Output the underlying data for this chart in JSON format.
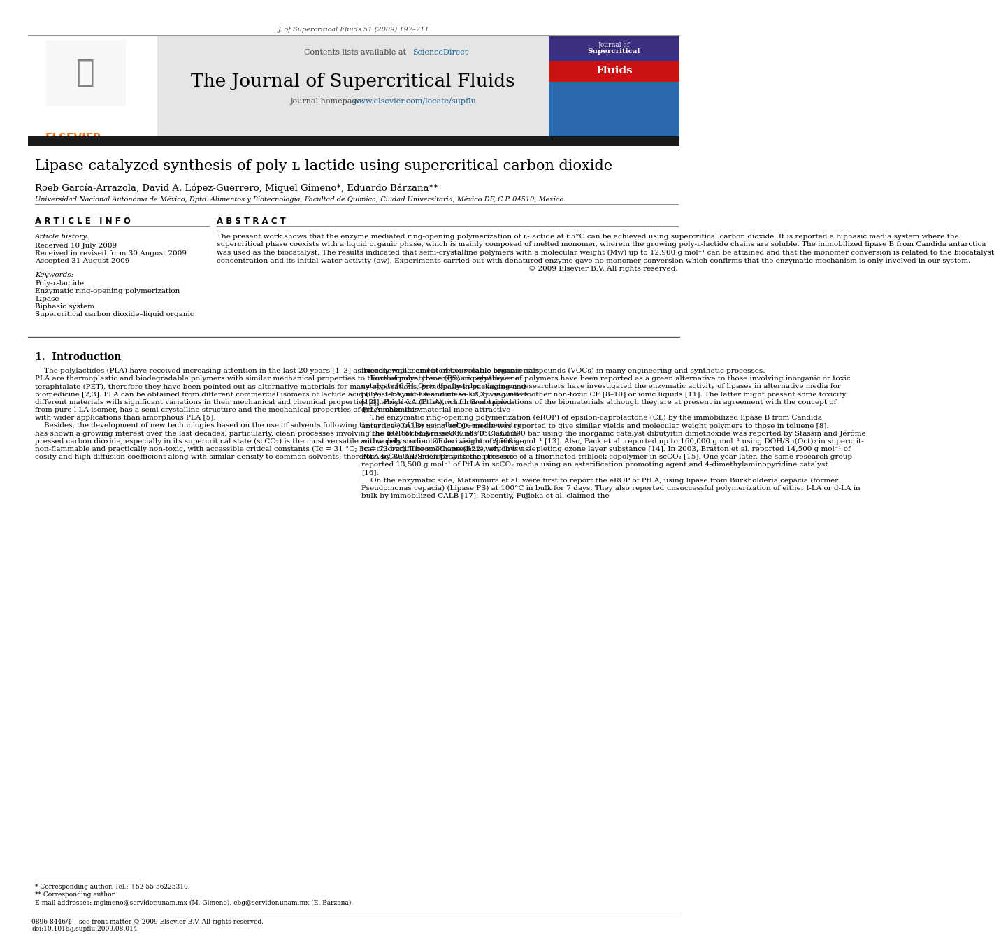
{
  "journal_ref": "J. of Supercritical Fluids 51 (2009) 197–211",
  "contents_line": "Contents lists available at ",
  "sciencedirect_text": "ScienceDirect",
  "sciencedirect_color": "#1a6496",
  "journal_title": "The Journal of Supercritical Fluids",
  "homepage_prefix": "journal homepage: ",
  "homepage_url": "www.elsevier.com/locate/supflu",
  "homepage_color": "#1a6496",
  "header_bg": "#e0e0e0",
  "dark_bar_color": "#1a1a1a",
  "article_title": "Lipase-catalyzed synthesis of poly-ʟ-lactide using supercritical carbon dioxide",
  "authors": "Roeb García-Arrazola, David A. López-Guerrero, Miquel Gimeno*, Eduardo Bárzana**",
  "affiliation": "Universidad Nacional Autónoma de México, Dpto. Alimentos y Biotecnología, Facultad de Química, Ciudad Universitaria, México DF, C.P. 04510, Mexico",
  "article_info_header": "A R T I C L E   I N F O",
  "abstract_header": "A B S T R A C T",
  "article_history_label": "Article history:",
  "received": "Received 10 July 2009",
  "received_revised": "Received in revised form 30 August 2009",
  "accepted": "Accepted 31 August 2009",
  "keywords_label": "Keywords:",
  "keywords": [
    "Poly-ʟ-lactide",
    "Enzymatic ring-opening polymerization",
    "Lipase",
    "Biphasic system",
    "Supercritical carbon dioxide–liquid organic"
  ],
  "abstract_lines": [
    "The present work shows that the enzyme mediated ring-opening polymerization of ʟ-lactide at 65°C can be achieved using supercritical carbon dioxide. It is reported a biphasic media system where the",
    "supercritical phase coexists with a liquid organic phase, which is mainly composed of melted monomer, wherein the growing poly-ʟ-lactide chains are soluble. The immobilized lipase B from Candida antarctica",
    "was used as the biocatalyst. The results indicated that semi-crystalline polymers with a molecular weight (Mw) up to 12,900 g mol⁻¹ can be attained and that the monomer conversion is related to the biocatalyst",
    "concentration and its initial water activity (aw). Experiments carried out with denatured enzyme gave no monomer conversion which confirms that the enzymatic mechanism is only involved in our system.",
    "© 2009 Elsevier B.V. All rights reserved."
  ],
  "section1_title": "1.  Introduction",
  "col1_lines": [
    "    The polylactides (PLA) have received increasing attention in the last 20 years [1–3] as biorenewable and bioresourceable biomaterials.",
    "PLA are thermoplastic and biodegradable polymers with similar mechanical properties to those of polystyrene (PS) or polyethylene",
    "teraphtalate (PET), therefore they have been pointed out as alternative materials for many applications, principally in packaging and",
    "biomedicine [2,3]. PLA can be obtained from different commercial isomers of lactide acid (LA), l-LA, mc-LA and meso-LA, giving rise to",
    "different materials with significant variations in their mechanical and chemical properties [4]. Poly-l-LA (PtLA), which is obtained",
    "from pure l-LA isomer, has a semi-crystalline structure and the mechanical properties of PtLA make this material more attractive",
    "with wider applications than amorphous PLA [5].",
    "    Besides, the development of new technologies based on the use of solvents following the criteria of the so-called green chemistry",
    "has shown a growing interest over the last decades, particularly, clean processes involving the use of compressed fluids (CF). Com-",
    "pressed carbon dioxide, especially in its supercritical state (scCO₂) is the most versatile and widely studied CF as it is non-expensive,",
    "non-flammable and practically non-toxic, with accessible critical constants (Tc = 31 °C; Pc = 73 bar). The scCO₂ presents very low vis-",
    "cosity and high diffusion coefficient along with similar density to common solvents, therefore scCO₂ has been proposed as the eco-"
  ],
  "col2_lines": [
    "friendly replacement of the volatile organic compounds (VOCs) in many engineering and synthetic processes.",
    "    Furthermore, the enzymatic syntheses of polymers have been reported as a green alternative to those involving inorganic or toxic",
    "catalysts [6,7]. Over the last decade, many researchers have investigated the enzymatic activity of lipases in alternative media for",
    "polyester syntheses, such as scCO₂ as well as other non-toxic CF [8–10] or ionic liquids [11]. The latter might present some toxicity",
    "[12], which would restrict further applications of the biomaterials although they are at present in agreement with the concept of",
    "green chemistry.",
    "    The enzymatic ring-opening polymerization (eROP) of epsilon-caprolactone (CL) by the immobilized lipase B from Candida",
    "antartica (CALB) using scCO₂ media was reported to give similar yields and molecular weight polymers to those in toluene [8].",
    "    The ROP of l-LA in scCO₂ at 70°C and 300 bar using the inorganic catalyst dibutyitin dimethoxide was reported by Stassin and Jérôme",
    "with a polymer molecular weight of 9500 g mol⁻¹ [13]. Also, Pack et al. reported up to 160,000 g mol⁻¹ using DOH/Sn(Oct)₂ in supercrit-",
    "ical chlorodifluoromethane (R22), which is a depleting ozone layer substance [14]. In 2003, Bratton et al. reported 14,500 g mol⁻¹ of",
    "PtLA by BuOH/Sn(Oct)₂ with the presence of a fluorinated triblock copolymer in scCO₂ [15]. One year later, the same research group",
    "reported 13,500 g mol⁻¹ of PtLA in scCO₂ media using an esterification promoting agent and 4-dimethylaminopyridine catalyst",
    "[16].",
    "    On the enzymatic side, Matsumura et al. were first to report the eROP of PtLA, using lipase from Burkholderia cepacia (former",
    "Pseudomonas cepacia) (Lipase PS) at 100°C in bulk for 7 days. They also reported unsuccessful polymerization of either l-LA or d-LA in",
    "bulk by immobilized CALB [17]. Recently, Fujioka et al. claimed the"
  ],
  "footnote1": "* Corresponding author. Tel.: +52 55 56225310.",
  "footnote2": "** Corresponding author.",
  "footnote3": "E-mail addresses: mgimeno@servidor.unam.mx (M. Gimeno), ebg@servidor.unam.mx (E. Bárzana).",
  "bottom_line1": "0896-8446/$ – see front matter © 2009 Elsevier B.V. All rights reserved.",
  "bottom_line2": "doi:10.1016/j.supflu.2009.08.014",
  "elsevier_color": "#e87722",
  "link_color": "#1a6496",
  "cover_title_line1": "Journal of",
  "cover_title_line2": "Supercritical",
  "cover_title_line3": "Fluids"
}
